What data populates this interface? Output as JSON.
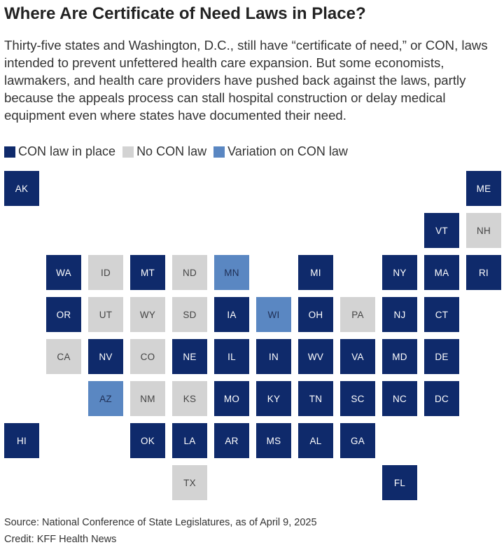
{
  "title": "Where Are Certificate of Need Laws in Place?",
  "subtitle": "Thirty-five states and Washington, D.C., still have “certificate of need,” or CON, laws intended to prevent unfettered health care expansion. But some economists, lawmakers, and health care providers have pushed back against the laws, partly because the appeals process can stall hospital construction or delay medical equipment even where states have documented their need.",
  "legend": [
    {
      "key": "con",
      "label": "CON law in place",
      "color": "#0f2a6b"
    },
    {
      "key": "none",
      "label": "No CON law",
      "color": "#d3d3d3"
    },
    {
      "key": "variation",
      "label": "Variation on CON law",
      "color": "#5a87c2"
    }
  ],
  "text_colors": {
    "con": "#ffffff",
    "none": "#444444",
    "variation": "#1f2f55"
  },
  "states": [
    {
      "abbr": "AK",
      "status": "con",
      "col": 0,
      "row": 0
    },
    {
      "abbr": "ME",
      "status": "con",
      "col": 11,
      "row": 0
    },
    {
      "abbr": "VT",
      "status": "con",
      "col": 10,
      "row": 1
    },
    {
      "abbr": "NH",
      "status": "none",
      "col": 11,
      "row": 1
    },
    {
      "abbr": "WA",
      "status": "con",
      "col": 1,
      "row": 2
    },
    {
      "abbr": "ID",
      "status": "none",
      "col": 2,
      "row": 2
    },
    {
      "abbr": "MT",
      "status": "con",
      "col": 3,
      "row": 2
    },
    {
      "abbr": "ND",
      "status": "none",
      "col": 4,
      "row": 2
    },
    {
      "abbr": "MN",
      "status": "variation",
      "col": 5,
      "row": 2
    },
    {
      "abbr": "MI",
      "status": "con",
      "col": 7,
      "row": 2
    },
    {
      "abbr": "NY",
      "status": "con",
      "col": 9,
      "row": 2
    },
    {
      "abbr": "MA",
      "status": "con",
      "col": 10,
      "row": 2
    },
    {
      "abbr": "RI",
      "status": "con",
      "col": 11,
      "row": 2
    },
    {
      "abbr": "OR",
      "status": "con",
      "col": 1,
      "row": 3
    },
    {
      "abbr": "UT",
      "status": "none",
      "col": 2,
      "row": 3
    },
    {
      "abbr": "WY",
      "status": "none",
      "col": 3,
      "row": 3
    },
    {
      "abbr": "SD",
      "status": "none",
      "col": 4,
      "row": 3
    },
    {
      "abbr": "IA",
      "status": "con",
      "col": 5,
      "row": 3
    },
    {
      "abbr": "WI",
      "status": "variation",
      "col": 6,
      "row": 3
    },
    {
      "abbr": "OH",
      "status": "con",
      "col": 7,
      "row": 3
    },
    {
      "abbr": "PA",
      "status": "none",
      "col": 8,
      "row": 3
    },
    {
      "abbr": "NJ",
      "status": "con",
      "col": 9,
      "row": 3
    },
    {
      "abbr": "CT",
      "status": "con",
      "col": 10,
      "row": 3
    },
    {
      "abbr": "CA",
      "status": "none",
      "col": 1,
      "row": 4
    },
    {
      "abbr": "NV",
      "status": "con",
      "col": 2,
      "row": 4
    },
    {
      "abbr": "CO",
      "status": "none",
      "col": 3,
      "row": 4
    },
    {
      "abbr": "NE",
      "status": "con",
      "col": 4,
      "row": 4
    },
    {
      "abbr": "IL",
      "status": "con",
      "col": 5,
      "row": 4
    },
    {
      "abbr": "IN",
      "status": "con",
      "col": 6,
      "row": 4
    },
    {
      "abbr": "WV",
      "status": "con",
      "col": 7,
      "row": 4
    },
    {
      "abbr": "VA",
      "status": "con",
      "col": 8,
      "row": 4
    },
    {
      "abbr": "MD",
      "status": "con",
      "col": 9,
      "row": 4
    },
    {
      "abbr": "DE",
      "status": "con",
      "col": 10,
      "row": 4
    },
    {
      "abbr": "AZ",
      "status": "variation",
      "col": 2,
      "row": 5
    },
    {
      "abbr": "NM",
      "status": "none",
      "col": 3,
      "row": 5
    },
    {
      "abbr": "KS",
      "status": "none",
      "col": 4,
      "row": 5
    },
    {
      "abbr": "MO",
      "status": "con",
      "col": 5,
      "row": 5
    },
    {
      "abbr": "KY",
      "status": "con",
      "col": 6,
      "row": 5
    },
    {
      "abbr": "TN",
      "status": "con",
      "col": 7,
      "row": 5
    },
    {
      "abbr": "SC",
      "status": "con",
      "col": 8,
      "row": 5
    },
    {
      "abbr": "NC",
      "status": "con",
      "col": 9,
      "row": 5
    },
    {
      "abbr": "DC",
      "status": "con",
      "col": 10,
      "row": 5
    },
    {
      "abbr": "HI",
      "status": "con",
      "col": 0,
      "row": 6
    },
    {
      "abbr": "OK",
      "status": "con",
      "col": 3,
      "row": 6
    },
    {
      "abbr": "LA",
      "status": "con",
      "col": 4,
      "row": 6
    },
    {
      "abbr": "AR",
      "status": "con",
      "col": 5,
      "row": 6
    },
    {
      "abbr": "MS",
      "status": "con",
      "col": 6,
      "row": 6
    },
    {
      "abbr": "AL",
      "status": "con",
      "col": 7,
      "row": 6
    },
    {
      "abbr": "GA",
      "status": "con",
      "col": 8,
      "row": 6
    },
    {
      "abbr": "TX",
      "status": "none",
      "col": 4,
      "row": 7
    },
    {
      "abbr": "FL",
      "status": "con",
      "col": 9,
      "row": 7
    }
  ],
  "source": "Source: National Conference of State Legislatures, as of April 9, 2025",
  "credit": "Credit: KFF Health News"
}
